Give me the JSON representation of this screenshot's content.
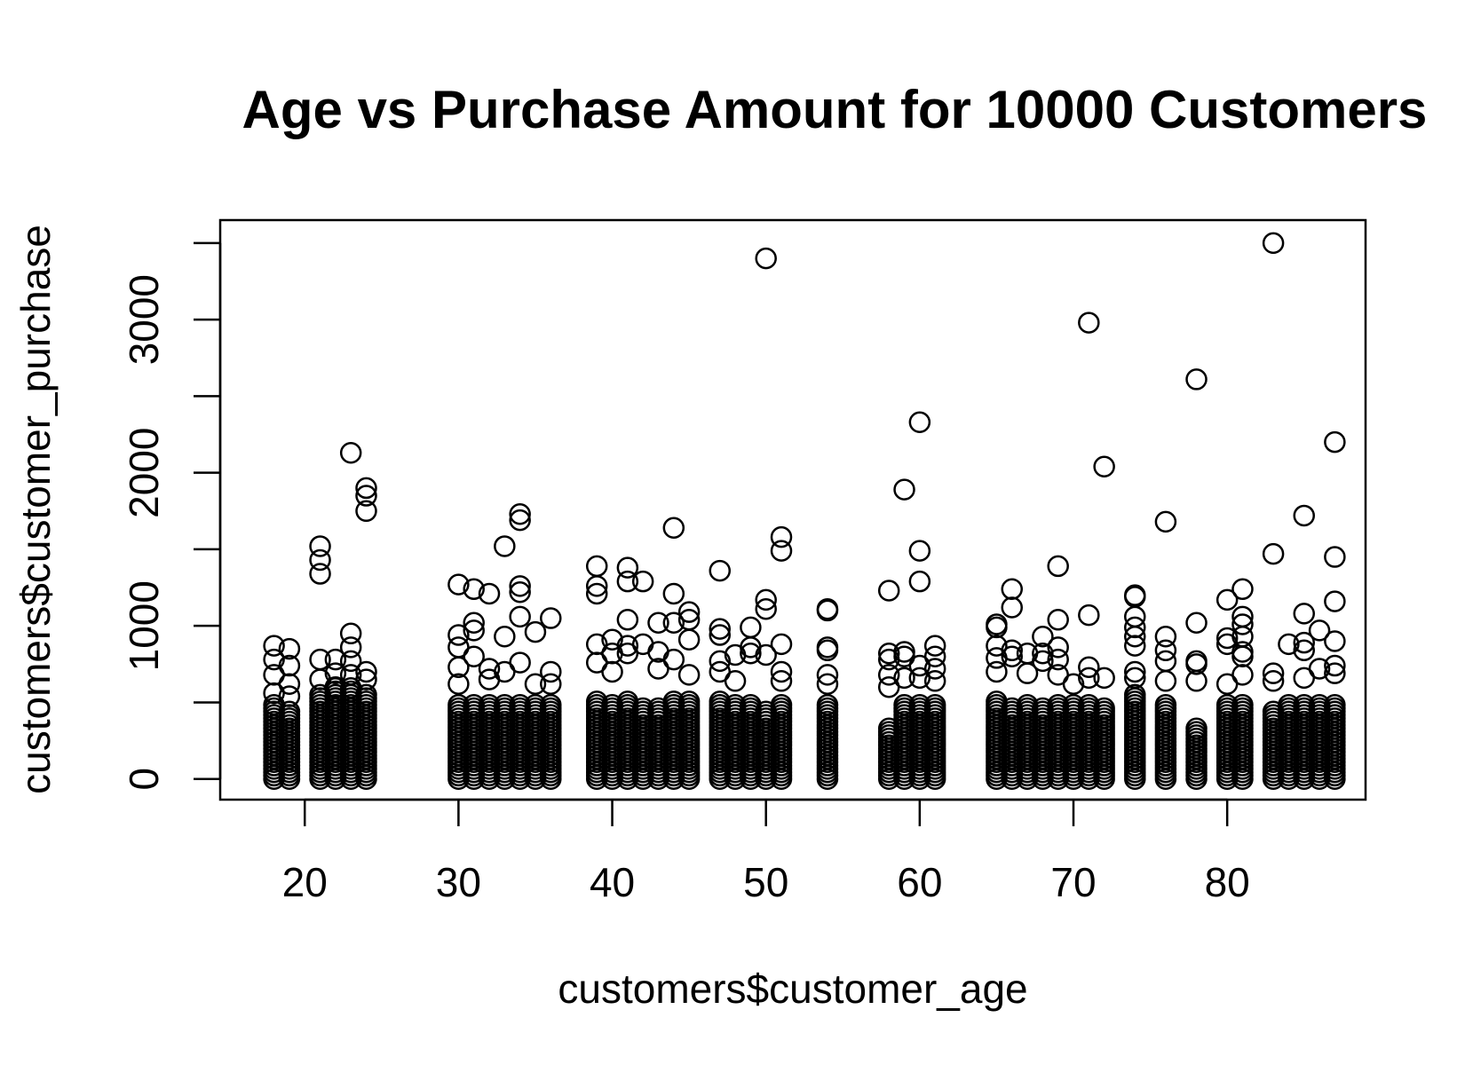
{
  "chart_data": {
    "type": "scatter",
    "title": "Age vs Purchase Amount for 10000 Customers",
    "xlabel": "customers$customer_age",
    "ylabel": "customers$customer_purchase",
    "xlim": [
      14.5,
      89
    ],
    "ylim": [
      -135,
      3650
    ],
    "x_ticks": [
      20,
      30,
      40,
      50,
      60,
      70,
      80
    ],
    "x_tick_labels": [
      "20",
      "30",
      "40",
      "50",
      "60",
      "70",
      "80"
    ],
    "y_ticks": [
      0,
      500,
      1000,
      1500,
      2000,
      2500,
      3000,
      3500
    ],
    "y_tick_labels": [
      "0",
      "",
      "1000",
      "",
      "2000",
      "",
      "3000",
      ""
    ],
    "marker": "open-circle",
    "grid": false,
    "ages": [
      18,
      19,
      21,
      22,
      23,
      24,
      30,
      31,
      32,
      33,
      34,
      35,
      36,
      39,
      40,
      41,
      42,
      43,
      44,
      45,
      47,
      48,
      49,
      50,
      51,
      54,
      58,
      59,
      60,
      61,
      65,
      66,
      67,
      68,
      69,
      70,
      71,
      72,
      74,
      76,
      78,
      80,
      81,
      83,
      84,
      85,
      86,
      87
    ],
    "dense_max": [
      500,
      450,
      550,
      600,
      600,
      550,
      500,
      500,
      500,
      500,
      500,
      500,
      500,
      520,
      500,
      520,
      480,
      480,
      520,
      520,
      520,
      500,
      500,
      450,
      500,
      500,
      350,
      500,
      500,
      500,
      520,
      480,
      500,
      480,
      500,
      500,
      500,
      480,
      550,
      500,
      350,
      500,
      500,
      450,
      500,
      500,
      500,
      500
    ],
    "outliers": [
      {
        "x": 18,
        "y": 870
      },
      {
        "x": 18,
        "y": 780
      },
      {
        "x": 18,
        "y": 680
      },
      {
        "x": 18,
        "y": 560
      },
      {
        "x": 19,
        "y": 850
      },
      {
        "x": 19,
        "y": 740
      },
      {
        "x": 19,
        "y": 620
      },
      {
        "x": 19,
        "y": 540
      },
      {
        "x": 21,
        "y": 1520
      },
      {
        "x": 21,
        "y": 1430
      },
      {
        "x": 21,
        "y": 1340
      },
      {
        "x": 21,
        "y": 780
      },
      {
        "x": 21,
        "y": 650
      },
      {
        "x": 22,
        "y": 780
      },
      {
        "x": 22,
        "y": 690
      },
      {
        "x": 22,
        "y": 600
      },
      {
        "x": 23,
        "y": 2130
      },
      {
        "x": 23,
        "y": 950
      },
      {
        "x": 23,
        "y": 860
      },
      {
        "x": 23,
        "y": 770
      },
      {
        "x": 23,
        "y": 680
      },
      {
        "x": 24,
        "y": 1900
      },
      {
        "x": 24,
        "y": 1850
      },
      {
        "x": 24,
        "y": 1750
      },
      {
        "x": 24,
        "y": 700
      },
      {
        "x": 24,
        "y": 650
      },
      {
        "x": 30,
        "y": 1270
      },
      {
        "x": 30,
        "y": 940
      },
      {
        "x": 30,
        "y": 860
      },
      {
        "x": 30,
        "y": 730
      },
      {
        "x": 30,
        "y": 620
      },
      {
        "x": 31,
        "y": 1240
      },
      {
        "x": 31,
        "y": 1020
      },
      {
        "x": 31,
        "y": 970
      },
      {
        "x": 31,
        "y": 800
      },
      {
        "x": 32,
        "y": 1210
      },
      {
        "x": 32,
        "y": 720
      },
      {
        "x": 32,
        "y": 650
      },
      {
        "x": 33,
        "y": 1520
      },
      {
        "x": 33,
        "y": 930
      },
      {
        "x": 33,
        "y": 700
      },
      {
        "x": 34,
        "y": 1730
      },
      {
        "x": 34,
        "y": 1690
      },
      {
        "x": 34,
        "y": 1260
      },
      {
        "x": 34,
        "y": 1220
      },
      {
        "x": 34,
        "y": 1060
      },
      {
        "x": 34,
        "y": 760
      },
      {
        "x": 35,
        "y": 960
      },
      {
        "x": 35,
        "y": 620
      },
      {
        "x": 36,
        "y": 1050
      },
      {
        "x": 36,
        "y": 700
      },
      {
        "x": 36,
        "y": 620
      },
      {
        "x": 39,
        "y": 1390
      },
      {
        "x": 39,
        "y": 1260
      },
      {
        "x": 39,
        "y": 1210
      },
      {
        "x": 39,
        "y": 880
      },
      {
        "x": 39,
        "y": 760
      },
      {
        "x": 40,
        "y": 910
      },
      {
        "x": 40,
        "y": 820
      },
      {
        "x": 40,
        "y": 700
      },
      {
        "x": 41,
        "y": 1380
      },
      {
        "x": 41,
        "y": 1290
      },
      {
        "x": 41,
        "y": 1040
      },
      {
        "x": 41,
        "y": 870
      },
      {
        "x": 41,
        "y": 820
      },
      {
        "x": 42,
        "y": 1290
      },
      {
        "x": 42,
        "y": 880
      },
      {
        "x": 43,
        "y": 1020
      },
      {
        "x": 43,
        "y": 830
      },
      {
        "x": 43,
        "y": 720
      },
      {
        "x": 44,
        "y": 1640
      },
      {
        "x": 44,
        "y": 1210
      },
      {
        "x": 44,
        "y": 1020
      },
      {
        "x": 44,
        "y": 780
      },
      {
        "x": 45,
        "y": 1090
      },
      {
        "x": 45,
        "y": 1040
      },
      {
        "x": 45,
        "y": 910
      },
      {
        "x": 45,
        "y": 680
      },
      {
        "x": 47,
        "y": 1360
      },
      {
        "x": 47,
        "y": 980
      },
      {
        "x": 47,
        "y": 940
      },
      {
        "x": 47,
        "y": 770
      },
      {
        "x": 47,
        "y": 700
      },
      {
        "x": 48,
        "y": 810
      },
      {
        "x": 48,
        "y": 640
      },
      {
        "x": 49,
        "y": 990
      },
      {
        "x": 49,
        "y": 860
      },
      {
        "x": 49,
        "y": 820
      },
      {
        "x": 50,
        "y": 3400
      },
      {
        "x": 50,
        "y": 1170
      },
      {
        "x": 50,
        "y": 1110
      },
      {
        "x": 50,
        "y": 810
      },
      {
        "x": 51,
        "y": 1580
      },
      {
        "x": 51,
        "y": 1490
      },
      {
        "x": 51,
        "y": 880
      },
      {
        "x": 51,
        "y": 700
      },
      {
        "x": 51,
        "y": 640
      },
      {
        "x": 54,
        "y": 1110
      },
      {
        "x": 54,
        "y": 1100
      },
      {
        "x": 54,
        "y": 860
      },
      {
        "x": 54,
        "y": 840
      },
      {
        "x": 54,
        "y": 680
      },
      {
        "x": 54,
        "y": 620
      },
      {
        "x": 58,
        "y": 1230
      },
      {
        "x": 58,
        "y": 820
      },
      {
        "x": 58,
        "y": 780
      },
      {
        "x": 58,
        "y": 680
      },
      {
        "x": 58,
        "y": 600
      },
      {
        "x": 59,
        "y": 1890
      },
      {
        "x": 59,
        "y": 830
      },
      {
        "x": 59,
        "y": 800
      },
      {
        "x": 59,
        "y": 660
      },
      {
        "x": 60,
        "y": 2330
      },
      {
        "x": 60,
        "y": 1490
      },
      {
        "x": 60,
        "y": 1290
      },
      {
        "x": 60,
        "y": 740
      },
      {
        "x": 60,
        "y": 660
      },
      {
        "x": 61,
        "y": 870
      },
      {
        "x": 61,
        "y": 800
      },
      {
        "x": 61,
        "y": 720
      },
      {
        "x": 61,
        "y": 640
      },
      {
        "x": 65,
        "y": 1010
      },
      {
        "x": 65,
        "y": 990
      },
      {
        "x": 65,
        "y": 870
      },
      {
        "x": 65,
        "y": 790
      },
      {
        "x": 65,
        "y": 700
      },
      {
        "x": 66,
        "y": 1240
      },
      {
        "x": 66,
        "y": 1120
      },
      {
        "x": 66,
        "y": 840
      },
      {
        "x": 66,
        "y": 800
      },
      {
        "x": 67,
        "y": 820
      },
      {
        "x": 67,
        "y": 690
      },
      {
        "x": 68,
        "y": 930
      },
      {
        "x": 68,
        "y": 820
      },
      {
        "x": 68,
        "y": 770
      },
      {
        "x": 69,
        "y": 1390
      },
      {
        "x": 69,
        "y": 1040
      },
      {
        "x": 69,
        "y": 860
      },
      {
        "x": 69,
        "y": 780
      },
      {
        "x": 69,
        "y": 680
      },
      {
        "x": 70,
        "y": 620
      },
      {
        "x": 71,
        "y": 2980
      },
      {
        "x": 71,
        "y": 1070
      },
      {
        "x": 71,
        "y": 730
      },
      {
        "x": 71,
        "y": 660
      },
      {
        "x": 72,
        "y": 2040
      },
      {
        "x": 72,
        "y": 660
      },
      {
        "x": 74,
        "y": 1200
      },
      {
        "x": 74,
        "y": 1190
      },
      {
        "x": 74,
        "y": 1060
      },
      {
        "x": 74,
        "y": 990
      },
      {
        "x": 74,
        "y": 930
      },
      {
        "x": 74,
        "y": 870
      },
      {
        "x": 74,
        "y": 700
      },
      {
        "x": 74,
        "y": 660
      },
      {
        "x": 76,
        "y": 1680
      },
      {
        "x": 76,
        "y": 930
      },
      {
        "x": 76,
        "y": 840
      },
      {
        "x": 76,
        "y": 770
      },
      {
        "x": 76,
        "y": 640
      },
      {
        "x": 78,
        "y": 2610
      },
      {
        "x": 78,
        "y": 1020
      },
      {
        "x": 78,
        "y": 770
      },
      {
        "x": 78,
        "y": 750
      },
      {
        "x": 78,
        "y": 640
      },
      {
        "x": 80,
        "y": 1170
      },
      {
        "x": 80,
        "y": 920
      },
      {
        "x": 80,
        "y": 880
      },
      {
        "x": 80,
        "y": 620
      },
      {
        "x": 81,
        "y": 1240
      },
      {
        "x": 81,
        "y": 1060
      },
      {
        "x": 81,
        "y": 1010
      },
      {
        "x": 81,
        "y": 930
      },
      {
        "x": 81,
        "y": 830
      },
      {
        "x": 81,
        "y": 800
      },
      {
        "x": 81,
        "y": 680
      },
      {
        "x": 83,
        "y": 3500
      },
      {
        "x": 83,
        "y": 1470
      },
      {
        "x": 83,
        "y": 690
      },
      {
        "x": 83,
        "y": 640
      },
      {
        "x": 84,
        "y": 880
      },
      {
        "x": 85,
        "y": 1720
      },
      {
        "x": 85,
        "y": 1080
      },
      {
        "x": 85,
        "y": 890
      },
      {
        "x": 85,
        "y": 840
      },
      {
        "x": 85,
        "y": 660
      },
      {
        "x": 86,
        "y": 970
      },
      {
        "x": 86,
        "y": 720
      },
      {
        "x": 87,
        "y": 2200
      },
      {
        "x": 87,
        "y": 1450
      },
      {
        "x": 87,
        "y": 1160
      },
      {
        "x": 87,
        "y": 900
      },
      {
        "x": 87,
        "y": 740
      },
      {
        "x": 87,
        "y": 690
      }
    ]
  }
}
